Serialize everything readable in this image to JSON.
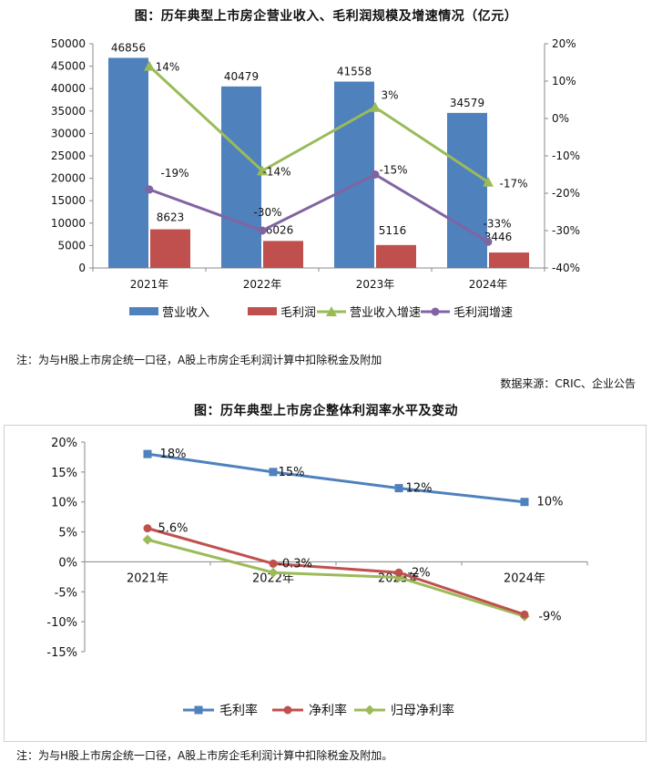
{
  "colors": {
    "revenue": "#4f81bd",
    "gross_profit": "#c0504d",
    "revenue_growth": "#9bbb59",
    "gross_profit_growth": "#8064a2",
    "gross_margin": "#4f81bd",
    "net_margin": "#c0504d",
    "parent_net_margin": "#9bbb59"
  },
  "note1": "注：为与H股上市房企统一口径，A股上市房企毛利润计算中扣除税金及附加",
  "source": "数据来源：CRIC、企业公告",
  "note2": "注：为与H股上市房企统一口径，A股上市房企毛利润计算中扣除税金及附加。",
  "chart_data": [
    {
      "type": "bar",
      "title": "图：历年典型上市房企营业收入、毛利润规模及增速情况（亿元）",
      "categories": [
        "2021年",
        "2022年",
        "2023年",
        "2024年"
      ],
      "ylim": [
        0,
        50000
      ],
      "yticks": [
        "0",
        "5000",
        "10000",
        "15000",
        "20000",
        "25000",
        "30000",
        "35000",
        "40000",
        "45000",
        "50000"
      ],
      "y2lim": [
        -40,
        20
      ],
      "y2ticks": [
        "-40%",
        "-30%",
        "-20%",
        "-10%",
        "0%",
        "10%",
        "20%"
      ],
      "series": [
        {
          "name": "营业收入",
          "kind": "bar",
          "axis": "left",
          "values": [
            46856,
            40479,
            41558,
            34579
          ],
          "labels": [
            "46856",
            "40479",
            "41558",
            "34579"
          ]
        },
        {
          "name": "毛利润",
          "kind": "bar",
          "axis": "left",
          "values": [
            8623,
            6026,
            5116,
            3446
          ],
          "labels": [
            "8623",
            "6026",
            "5116",
            "3446"
          ]
        },
        {
          "name": "营业收入增速",
          "kind": "line",
          "marker": "triangle",
          "axis": "right",
          "values": [
            14,
            -14,
            3,
            -17
          ],
          "labels": [
            "14%",
            "-14%",
            "3%",
            "-17%"
          ]
        },
        {
          "name": "毛利润增速",
          "kind": "line",
          "marker": "circle",
          "axis": "right",
          "values": [
            -19,
            -30,
            -15,
            -33
          ],
          "labels": [
            "-19%",
            "-30%",
            "-15%",
            "-33%"
          ]
        }
      ],
      "legend": "bottom"
    },
    {
      "type": "line",
      "title": "图：历年典型上市房企整体利润率水平及变动",
      "categories": [
        "2021年",
        "2022年",
        "2023年",
        "2024年"
      ],
      "ylim": [
        -15,
        20
      ],
      "yticks": [
        "-15%",
        "-10%",
        "-5%",
        "0%",
        "5%",
        "10%",
        "15%",
        "20%"
      ],
      "series": [
        {
          "name": "毛利率",
          "marker": "square",
          "values": [
            18,
            15,
            12.3,
            10
          ],
          "labels": [
            "18%",
            "15%",
            "12%",
            "10%"
          ]
        },
        {
          "name": "净利率",
          "marker": "circle",
          "values": [
            5.6,
            -0.3,
            -1.8,
            -8.8
          ],
          "labels": [
            "5.6%",
            "-0.3%",
            "-2%",
            "-9%"
          ]
        },
        {
          "name": "归母净利率",
          "marker": "diamond",
          "values": [
            3.7,
            -1.8,
            -2.6,
            -9.1
          ],
          "labels": [
            "",
            "",
            "",
            ""
          ]
        }
      ],
      "legend": "bottom"
    }
  ]
}
